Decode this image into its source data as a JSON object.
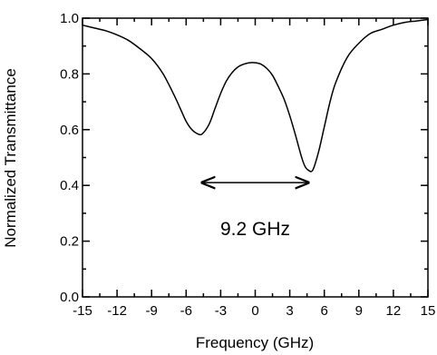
{
  "chart_data": {
    "type": "line",
    "xlabel": "Frequency (GHz)",
    "ylabel": "Normalized Transmittance",
    "xlim": [
      -15,
      15
    ],
    "ylim": [
      0.0,
      1.0
    ],
    "x_ticks": [
      -15,
      -12,
      -9,
      -6,
      -3,
      0,
      3,
      6,
      9,
      12,
      15
    ],
    "x_tick_labels": [
      "-15",
      "-12",
      "-9",
      "-6",
      "-3",
      "0",
      "3",
      "6",
      "9",
      "12",
      "15"
    ],
    "y_ticks": [
      0.0,
      0.2,
      0.4,
      0.6,
      0.8,
      1.0
    ],
    "y_tick_labels": [
      "0.0",
      "0.2",
      "0.4",
      "0.6",
      "0.8",
      "1.0"
    ],
    "grid": false,
    "series": [
      {
        "x": [
          -15,
          -14,
          -13,
          -12,
          -11,
          -10,
          -9,
          -8,
          -7,
          -6.5,
          -6,
          -5.5,
          -5,
          -4.6,
          -4,
          -3.5,
          -3,
          -2.5,
          -2,
          -1.5,
          -1,
          -0.5,
          0,
          0.5,
          1,
          1.5,
          2,
          2.5,
          3,
          3.5,
          4,
          4.3,
          4.6,
          5,
          5.5,
          6,
          6.5,
          7,
          8,
          9,
          10,
          11,
          12,
          13,
          14,
          15
        ],
        "y": [
          0.975,
          0.965,
          0.955,
          0.94,
          0.92,
          0.89,
          0.855,
          0.8,
          0.72,
          0.675,
          0.63,
          0.6,
          0.585,
          0.585,
          0.62,
          0.675,
          0.73,
          0.775,
          0.805,
          0.825,
          0.835,
          0.84,
          0.84,
          0.835,
          0.82,
          0.795,
          0.755,
          0.71,
          0.65,
          0.58,
          0.505,
          0.47,
          0.455,
          0.455,
          0.52,
          0.61,
          0.7,
          0.77,
          0.86,
          0.91,
          0.945,
          0.96,
          0.975,
          0.985,
          0.99,
          0.995
        ]
      }
    ],
    "annotations": [
      {
        "type": "double-arrow",
        "x_start": -4.6,
        "x_end": 4.6,
        "y": 0.41
      },
      {
        "type": "text",
        "text": "9.2 GHz",
        "x": 0,
        "y": 0.24
      }
    ]
  }
}
